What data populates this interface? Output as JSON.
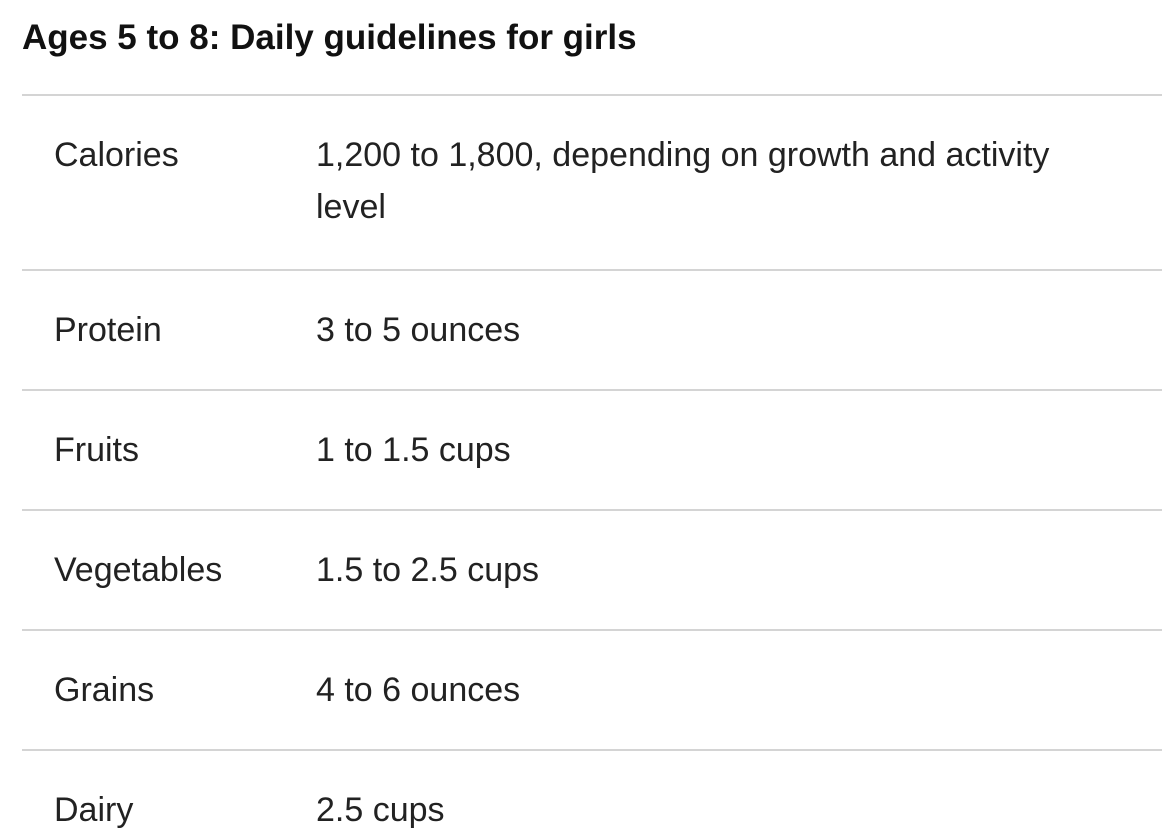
{
  "title": "Ages 5 to 8: Daily guidelines for girls",
  "rows": [
    {
      "label": "Calories",
      "value": "1,200 to 1,800, depending on growth and activity level"
    },
    {
      "label": "Protein",
      "value": "3 to 5 ounces"
    },
    {
      "label": "Fruits",
      "value": "1 to 1.5 cups"
    },
    {
      "label": "Vegetables",
      "value": "1.5 to 2.5 cups"
    },
    {
      "label": "Grains",
      "value": "4 to 6 ounces"
    },
    {
      "label": "Dairy",
      "value": "2.5 cups"
    }
  ]
}
